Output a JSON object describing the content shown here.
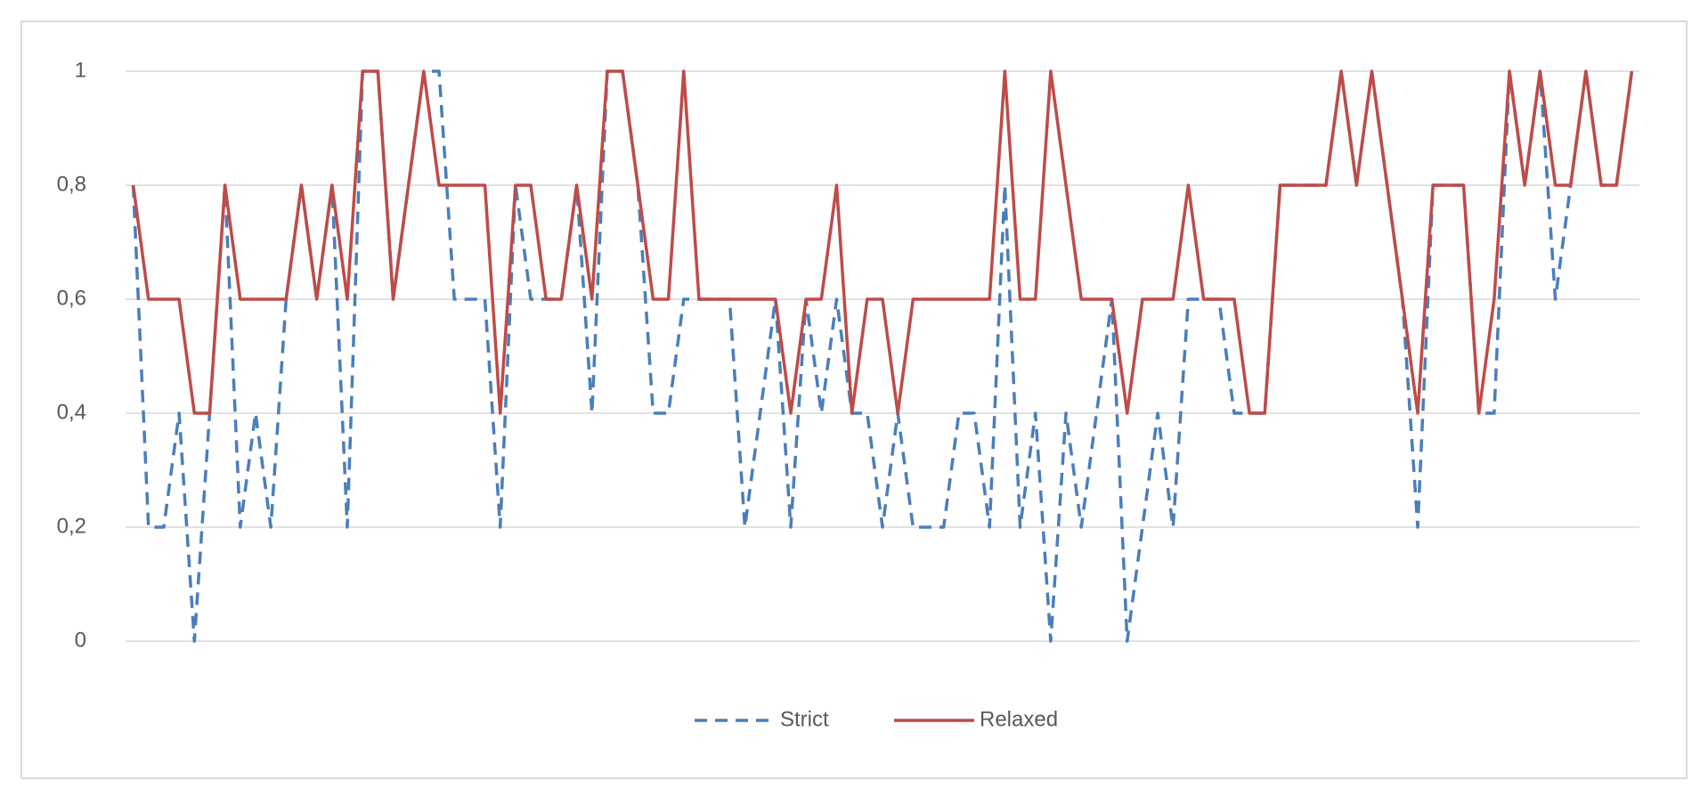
{
  "chart_data": {
    "type": "line",
    "categories": [
      null,
      null,
      null,
      null,
      null,
      null,
      null,
      null,
      null,
      null,
      null,
      null,
      null,
      null,
      null,
      null,
      null,
      null,
      null,
      null,
      null,
      null,
      null,
      null,
      null,
      null,
      null,
      null,
      null,
      null,
      null,
      null,
      null,
      null,
      null,
      null,
      null,
      null,
      null,
      null,
      null,
      null,
      null,
      null,
      null,
      null,
      null,
      null,
      null,
      null,
      null,
      null,
      null,
      null,
      null,
      null,
      null,
      null,
      null,
      null,
      null,
      null,
      null,
      null,
      null,
      null,
      null,
      null,
      null,
      null,
      null,
      null,
      null,
      null,
      null,
      null,
      null,
      null,
      null,
      null,
      null,
      null,
      null,
      null,
      null,
      null,
      null,
      null,
      null,
      null,
      null,
      null,
      null,
      null,
      null,
      null,
      null,
      null,
      null
    ],
    "series": [
      {
        "name": "Strict",
        "color": "#4a7ebb",
        "style": "dashed",
        "values": [
          0.8,
          0.2,
          0.2,
          0.4,
          0,
          0.4,
          0.8,
          0.2,
          0.4,
          0.2,
          0.6,
          0.8,
          0.6,
          0.8,
          0.2,
          1,
          1,
          0.6,
          0.8,
          1,
          1,
          0.6,
          0.6,
          0.6,
          0.2,
          0.8,
          0.6,
          0.6,
          0.6,
          0.8,
          0.4,
          1,
          1,
          0.8,
          0.4,
          0.4,
          0.6,
          0.6,
          0.6,
          0.6,
          0.2,
          0.4,
          0.6,
          0.2,
          0.6,
          0.4,
          0.6,
          0.4,
          0.4,
          0.2,
          0.4,
          0.2,
          0.2,
          0.2,
          0.4,
          0.4,
          0.2,
          0.8,
          0.2,
          0.4,
          0,
          0.4,
          0.2,
          0.4,
          0.6,
          0,
          0.2,
          0.4,
          0.2,
          0.6,
          0.6,
          0.6,
          0.4,
          0.4,
          0.4,
          0.8,
          0.8,
          0.8,
          0.8,
          1,
          0.8,
          1,
          0.8,
          0.6,
          0.2,
          0.8,
          0.8,
          0.8,
          0.4,
          0.4,
          1,
          0.8,
          1,
          0.6,
          0.8,
          1,
          0.8,
          0.8,
          1
        ]
      },
      {
        "name": "Relaxed",
        "color": "#be4b48",
        "style": "solid",
        "values": [
          0.8,
          0.6,
          0.6,
          0.6,
          0.4,
          0.4,
          0.8,
          0.6,
          0.6,
          0.6,
          0.6,
          0.8,
          0.6,
          0.8,
          0.6,
          1,
          1,
          0.6,
          0.8,
          1,
          0.8,
          0.8,
          0.8,
          0.8,
          0.4,
          0.8,
          0.8,
          0.6,
          0.6,
          0.8,
          0.6,
          1,
          1,
          0.8,
          0.6,
          0.6,
          1,
          0.6,
          0.6,
          0.6,
          0.6,
          0.6,
          0.6,
          0.4,
          0.6,
          0.6,
          0.8,
          0.4,
          0.6,
          0.6,
          0.4,
          0.6,
          0.6,
          0.6,
          0.6,
          0.6,
          0.6,
          1,
          0.6,
          0.6,
          1,
          0.8,
          0.6,
          0.6,
          0.6,
          0.4,
          0.6,
          0.6,
          0.6,
          0.8,
          0.6,
          0.6,
          0.6,
          0.4,
          0.4,
          0.8,
          0.8,
          0.8,
          0.8,
          1,
          0.8,
          1,
          0.8,
          0.6,
          0.4,
          0.8,
          0.8,
          0.8,
          0.4,
          0.6,
          1,
          0.8,
          1,
          0.8,
          0.8,
          1,
          0.8,
          0.8,
          1
        ]
      }
    ],
    "ylim": [
      0,
      1
    ],
    "yticks": [
      0,
      {
        "value": 0.2,
        "label": "0,2"
      },
      {
        "value": 0.4,
        "label": "0,4"
      },
      {
        "value": 0.6,
        "label": "0,6"
      },
      {
        "value": 0.8,
        "label": "0,8"
      },
      1
    ],
    "grid": true,
    "legend": "bottom"
  }
}
